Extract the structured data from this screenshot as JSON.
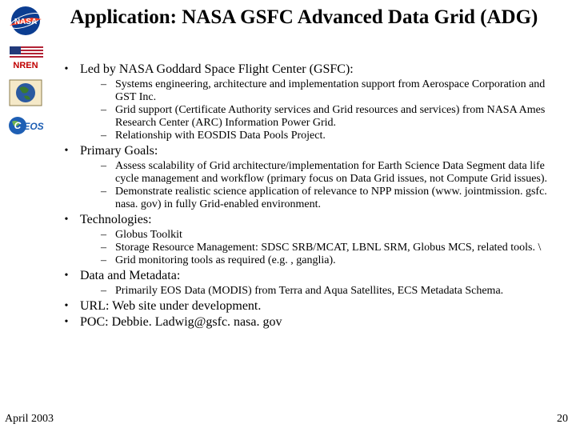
{
  "title": "Application: NASA GSFC Advanced Data Grid (ADG)",
  "footer": {
    "date": "April 2003",
    "page": "20"
  },
  "colors": {
    "nasa_blue": "#0b3d91",
    "nasa_red": "#fc3d21",
    "flag_blue": "#223a7a",
    "flag_red": "#b22234",
    "ceos_blue": "#1e5fb4",
    "sea_blue": "#2b5aa0",
    "land_green": "#3b7a2f",
    "nren_text": "#c00000"
  },
  "bullets": [
    {
      "text": "Led by NASA Goddard Space Flight Center (GSFC):",
      "subs": [
        "Systems engineering, architecture and implementation support from Aerospace Corporation and GST Inc.",
        "Grid support (Certificate Authority services and Grid resources and services) from NASA Ames Research Center (ARC) Information Power Grid.",
        "Relationship with EOSDIS Data Pools Project."
      ]
    },
    {
      "text": "Primary Goals:",
      "subs": [
        "Assess scalability of Grid architecture/implementation for Earth Science Data Segment data life cycle management and workflow (primary focus on Data Grid issues, not Compute Grid issues).",
        "Demonstrate realistic science application of relevance to NPP mission (www. jointmission. gsfc. nasa. gov) in fully Grid-enabled environment."
      ]
    },
    {
      "text": "Technologies:",
      "subs": [
        "Globus Toolkit",
        "Storage Resource Management: SDSC SRB/MCAT, LBNL SRM, Globus MCS, related tools. \\",
        "Grid monitoring tools as required (e.g. , ganglia)."
      ]
    },
    {
      "text": "Data and Metadata:",
      "subs": [
        "Primarily EOS Data (MODIS) from Terra and Aqua Satellites, ECS Metadata Schema."
      ]
    },
    {
      "text": "URL: Web site under development.",
      "subs": []
    },
    {
      "text": "POC: Debbie. Ladwig@gsfc. nasa. gov",
      "subs": []
    }
  ]
}
